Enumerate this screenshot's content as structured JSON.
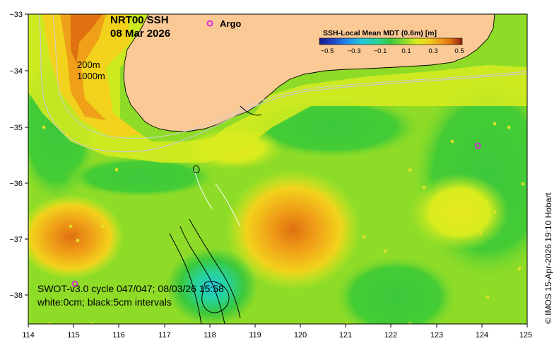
{
  "title": {
    "product": "NRT00 SSH",
    "date": "08 Mar 2026"
  },
  "legend_argo": {
    "marker": "o",
    "label": "Argo",
    "color": "#e020e0"
  },
  "colorbar": {
    "title": "SSH-Local Mean MDT (0.6m) [m]",
    "ticks": [
      "−0.5",
      "−0.3",
      "−0.1",
      "0.1",
      "0.3",
      "0.5"
    ],
    "colors": [
      "#1a1a8c",
      "#1f45c8",
      "#1f8fe8",
      "#22c8d8",
      "#27d39a",
      "#3cc83c",
      "#8fdc28",
      "#d8ec1e",
      "#f2d21c",
      "#f0a018",
      "#e07010",
      "#c04808",
      "#8c1e14"
    ]
  },
  "axes": {
    "x_ticks": [
      "114",
      "115",
      "116",
      "117",
      "118",
      "119",
      "120",
      "121",
      "122",
      "123",
      "124",
      "125"
    ],
    "y_ticks": [
      "−33",
      "−34",
      "−35",
      "−36",
      "−37",
      "−38"
    ]
  },
  "isobaths": {
    "shallow": "200m",
    "deep": "1000m"
  },
  "swath_note": {
    "line1": "SWOT-v3.0 cycle 047/047; 08/03/26 15:58",
    "line2": "white:0cm; black:5cm intervals"
  },
  "credit": "© IMOS 15-Apr-2026 19:10 Hobart",
  "colors": {
    "land": "#fbc995",
    "plot_border": "#000000"
  }
}
